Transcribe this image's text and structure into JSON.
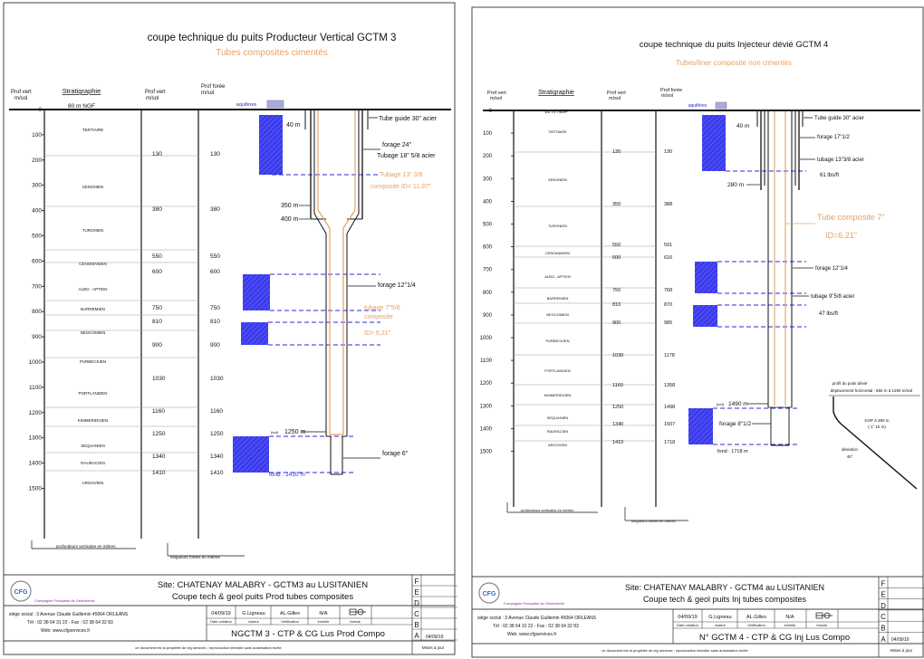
{
  "colors": {
    "orange": "#e8a060",
    "blue": "#2a2adf",
    "hatch": "#3a3aee",
    "dash": "#2a2adf",
    "steel": "#222222",
    "pale": "#a9a9e6"
  },
  "sheet1": {
    "title": "coupe technique du puits Producteur Vertical GCTM 3",
    "subtitle": "Tubes composites cimentés",
    "col_prof_vert": "Prof vert",
    "col_prof_vert_unit": "m/sol",
    "col_strat": "Stratigraphie",
    "col_prof_vert2": "Prof vert",
    "col_prof_vert2_unit": "m/sol",
    "col_prof_foree": "Prof forée",
    "col_prof_foree_unit": "m/sol",
    "ngf": "80 m NGF",
    "aquiferes": "aquifères",
    "depth_ticks": [
      "0",
      "100",
      "200",
      "300",
      "400",
      "500",
      "600",
      "700",
      "800",
      "900",
      "1000",
      "1100",
      "1200",
      "1300",
      "1400",
      "1500"
    ],
    "strata": [
      "TERTIAIRE",
      "SENONIEN",
      "TURONIEN",
      "CENOMANIEN",
      "ALBO - APTIEN",
      "BARREMIEN",
      "NEOCOMIEN",
      "PURBECKIEN",
      "PORTLANDIEN",
      "KIMMERIDGIEN",
      "SEQUANIEN",
      "RAURACIEN",
      "ARGOVIEN"
    ],
    "vert_depths": [
      "130",
      "380",
      "550",
      "600",
      "750",
      "810",
      "900",
      "1030",
      "1160",
      "1250",
      "1340",
      "1410"
    ],
    "foree_depths": [
      "130",
      "380",
      "550",
      "600",
      "750",
      "810",
      "900",
      "1030",
      "1160",
      "1250",
      "1340",
      "1410"
    ],
    "labels": {
      "d40": "40 m",
      "d350": "350 m",
      "d400": "400 m",
      "d1250": "1250 m",
      "d1250pre": "(tvd)",
      "fond": "fond : 1410 m",
      "tube_guide": "Tube guide 30\" acier",
      "forage24": "forage 24\"",
      "tubage18": "Tubage 18\" 5/8 acier",
      "tubage13a": "Tubage 13\" 3/8",
      "tubage13b": "composite  ID= 11,97\"",
      "forage12": "forage 12\"1/4",
      "tubage7a": "tubage 7\"5/8",
      "tubage7b": "composite",
      "tubage7c": "ID= 6,21\"",
      "forage6": "forage 6\"",
      "caption_vert": "profondeurs verticales en mètres",
      "caption_foree": "longueurs forées en mètres"
    },
    "footer": {
      "site": "Site: CHATENAY MALABRY - GCTM3 au LUSITANIEN",
      "desc": "Coupe tech & geol puits Prod tubes composites",
      "company": "Compagnie Française de Géothermie",
      "address": "siège social : 3 Avenue Claude Guillemin 45064 ORLEANS",
      "tel": "Tél : 02 38 64 31 22  -  Fax : 02 38 64 32 83",
      "web": "Web: www.cfgservices.fr",
      "date": "04/09/19",
      "author": "G.Ligneau",
      "verif": "AL.Gilles",
      "scale": "N/A",
      "date_lbl": "Date création",
      "author_lbl": "Auteur",
      "verif_lbl": "Vérification",
      "scale_lbl": "échelle",
      "format_lbl": "format",
      "drawing": "NGCTM 3 - CTP & CG Lus Prod Compo",
      "rev_letters": [
        "F",
        "E",
        "D",
        "C",
        "B",
        "A"
      ],
      "rev_date": "04/09/19",
      "maj": "Mises à jour",
      "legal": "ce document est la propriété de cfg services ; reproduction interdite sans autorisation écrite"
    }
  },
  "sheet2": {
    "title": "coupe technique du puits Injecteur dévié GCTM 4",
    "subtitle": "Tubes/liner composite non cimentés",
    "col_prof_vert": "Prof vert",
    "col_prof_vert_unit": "m/sol",
    "col_strat": "Stratigraphie",
    "col_prof_vert2": "Prof vert",
    "col_prof_vert2_unit": "m/sol",
    "col_prof_foree": "Prof forée",
    "col_prof_foree_unit": "m/sol",
    "ngf": "80 m NGF",
    "aquiferes": "aquifères",
    "depth_ticks": [
      "0",
      "100",
      "200",
      "300",
      "400",
      "500",
      "600",
      "700",
      "800",
      "900",
      "1000",
      "1100",
      "1200",
      "1300",
      "1400",
      "1500"
    ],
    "strata": [
      "TERTIAIRE",
      "SENONIEN",
      "TURONIEN",
      "CENOMANIEN",
      "ALBO - APTIEN",
      "BARREMIEN",
      "NEOCOMIEN",
      "PURBECKIEN",
      "PORTLANDIEN",
      "KIMMERIDGIEN",
      "SEQUANIEN",
      "RAURACIEN",
      "ARGOVIEN"
    ],
    "vert_depths": [
      "130",
      "350",
      "550",
      "600",
      "750",
      "810",
      "900",
      "1030",
      "1160",
      "1250",
      "1340",
      "1410"
    ],
    "foree_depths": [
      "130",
      "388",
      "591",
      "616",
      "768",
      "870",
      "985",
      "1178",
      "1358",
      "1498",
      "1607",
      "1718"
    ],
    "labels": {
      "d40": "40 m",
      "d280": "280 m",
      "d1490": "1490 m",
      "d1490pre": "(tvd)",
      "fond": "fond : 1718 m",
      "tube_guide": "Tube guide 30\" acier",
      "forage17": "forage 17\"1/2",
      "tubage13": "tubage 13\"3/8 acier",
      "lbs61": "61 lbs/ft",
      "tube_comp": "Tube composite 7\"",
      "id621": "ID=6.21\"",
      "forage12": "forage 12\"1/4",
      "tubage9": "tubage 9\"5/8 acier",
      "lbs47": "47 lbs/ft",
      "forage8": "forage 8\"1/2",
      "profil": "profil du puits dévié",
      "deplacement": "déplacement horizontal ; 650 m à 1290 m/Sol",
      "kop1": "KOP à 380 m",
      "kop2": "( 1° 10 m)",
      "deviation": "déviation",
      "deviation_val": "40°",
      "caption_vert": "profondeurs verticales en mètres",
      "caption_foree": "longueurs forées en mètres"
    },
    "footer": {
      "site": "Site: CHATENAY MALABRY - GCTM4 au LUSITANIEN",
      "desc": "Coupe tech & geol puits Inj tubes composites",
      "company": "Compagnie Française de Géothermie",
      "address": "siège social : 3 Avenue Claude Guillemin 45064 ORLEANS",
      "tel": "Tél : 02 38 64 31 22  -  Fax : 02 38 64 32 83",
      "web": "Web: www.cfgservices.fr",
      "date": "04/09/19",
      "author": "G.Ligneau",
      "verif": "AL.Gilles",
      "scale": "N/A",
      "date_lbl": "Date création",
      "author_lbl": "Auteur",
      "verif_lbl": "Vérification",
      "scale_lbl": "échelle",
      "format_lbl": "format",
      "drawing": "N° GCTM 4 - CTP & CG Inj Lus Compo",
      "rev_letters": [
        "F",
        "E",
        "D",
        "C",
        "B",
        "A"
      ],
      "rev_date": "04/09/19",
      "maj": "Mises à jour",
      "legal": "ce document est la propriété de cfg services ; reproduction interdite sans autorisation écrite"
    }
  },
  "logo_text": "CFG"
}
